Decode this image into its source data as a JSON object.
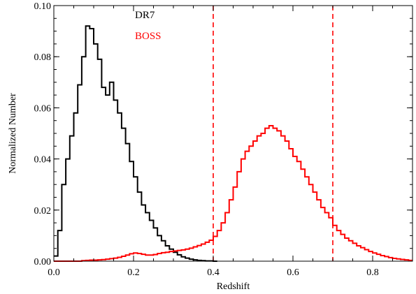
{
  "chart_data": {
    "type": "histogram",
    "title": "",
    "xlabel": "Redshift",
    "ylabel": "Normalized Number",
    "xlim": [
      0.0,
      0.9
    ],
    "ylim": [
      0.0,
      0.1
    ],
    "xticks": [
      "0.0",
      "0.2",
      "0.4",
      "0.6",
      "0.8"
    ],
    "xtick_values": [
      0.0,
      0.2,
      0.4,
      0.6,
      0.8
    ],
    "yticks": [
      "0.00",
      "0.02",
      "0.04",
      "0.06",
      "0.08",
      "0.10"
    ],
    "ytick_values": [
      0.0,
      0.02,
      0.04,
      0.06,
      0.08,
      0.1
    ],
    "grid": false,
    "legend_position": "top-left",
    "bin_width": 0.01,
    "series": [
      {
        "name": "DR7",
        "color": "#000000",
        "x_start": 0.0,
        "values": [
          0.002,
          0.012,
          0.03,
          0.04,
          0.049,
          0.058,
          0.069,
          0.08,
          0.092,
          0.091,
          0.085,
          0.079,
          0.068,
          0.065,
          0.07,
          0.063,
          0.058,
          0.052,
          0.046,
          0.039,
          0.033,
          0.027,
          0.022,
          0.019,
          0.016,
          0.013,
          0.01,
          0.008,
          0.006,
          0.0047,
          0.0035,
          0.0025,
          0.0017,
          0.0012,
          0.0008,
          0.0005,
          0.0003,
          0.0002,
          0.0001,
          0.0001,
          0.0
        ]
      },
      {
        "name": "BOSS",
        "color": "#ff0000",
        "x_start": 0.0,
        "values": [
          0.0,
          0.0,
          0.0,
          0.0,
          0.0,
          0.0,
          0.0,
          0.0002,
          0.0003,
          0.0004,
          0.0004,
          0.0005,
          0.0006,
          0.0008,
          0.001,
          0.0012,
          0.0015,
          0.0019,
          0.0024,
          0.0029,
          0.0032,
          0.003,
          0.0027,
          0.0024,
          0.0024,
          0.0026,
          0.003,
          0.0033,
          0.0035,
          0.0038,
          0.004,
          0.0042,
          0.0044,
          0.0047,
          0.0051,
          0.0056,
          0.0061,
          0.0067,
          0.0074,
          0.0082,
          0.0097,
          0.012,
          0.015,
          0.019,
          0.024,
          0.029,
          0.035,
          0.04,
          0.043,
          0.045,
          0.047,
          0.049,
          0.05,
          0.052,
          0.053,
          0.052,
          0.051,
          0.049,
          0.047,
          0.044,
          0.041,
          0.039,
          0.036,
          0.033,
          0.03,
          0.027,
          0.024,
          0.021,
          0.019,
          0.017,
          0.014,
          0.012,
          0.0105,
          0.009,
          0.008,
          0.007,
          0.006,
          0.0053,
          0.0045,
          0.0038,
          0.0032,
          0.0027,
          0.0022,
          0.0018,
          0.0014,
          0.0011,
          0.0009,
          0.0007,
          0.0005,
          0.0003
        ]
      }
    ],
    "reference_lines": [
      {
        "axis": "x",
        "value": 0.4,
        "color": "#ff0000",
        "style": "dashed"
      },
      {
        "axis": "x",
        "value": 0.7,
        "color": "#ff0000",
        "style": "dashed"
      }
    ]
  }
}
